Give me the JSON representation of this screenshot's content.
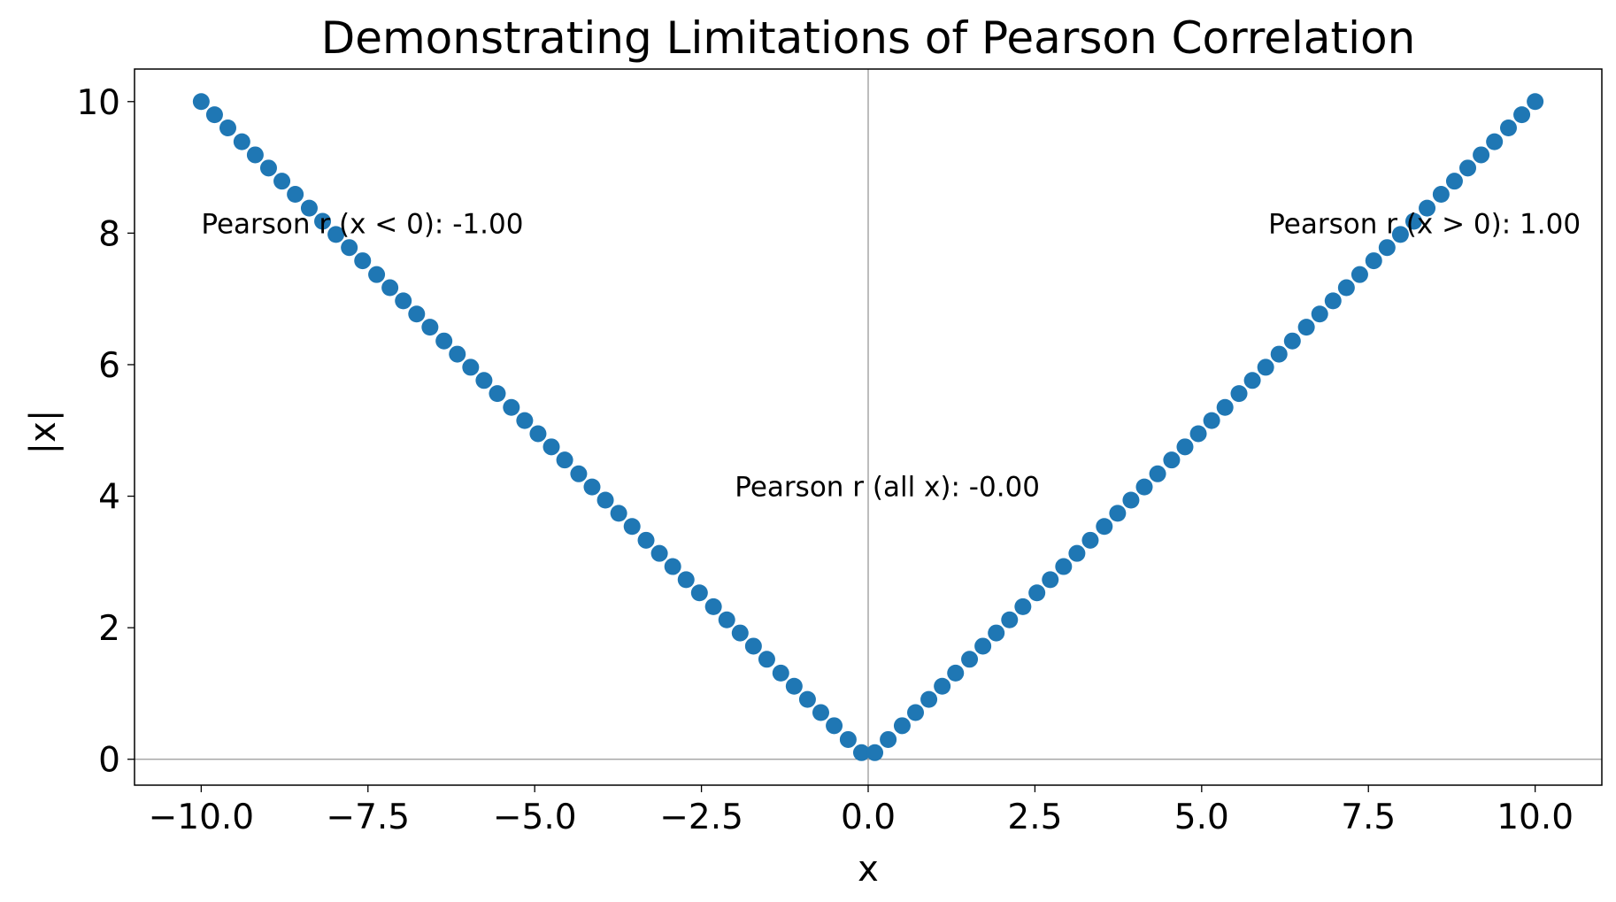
{
  "chart_data": {
    "type": "scatter",
    "title": "Demonstrating Limitations of Pearson Correlation",
    "x_label": "x",
    "y_label": "|x|",
    "color": "#1f77b4",
    "x": [
      -10.0,
      -9.8,
      -9.6,
      -9.39,
      -9.19,
      -8.99,
      -8.79,
      -8.59,
      -8.38,
      -8.18,
      -7.98,
      -7.78,
      -7.58,
      -7.37,
      -7.17,
      -6.97,
      -6.77,
      -6.57,
      -6.36,
      -6.16,
      -5.96,
      -5.76,
      -5.56,
      -5.35,
      -5.15,
      -4.95,
      -4.75,
      -4.55,
      -4.34,
      -4.14,
      -3.94,
      -3.74,
      -3.54,
      -3.33,
      -3.13,
      -2.93,
      -2.73,
      -2.53,
      -2.32,
      -2.12,
      -1.92,
      -1.72,
      -1.52,
      -1.31,
      -1.11,
      -0.91,
      -0.71,
      -0.51,
      -0.3,
      -0.1,
      0.1,
      0.3,
      0.51,
      0.71,
      0.91,
      1.11,
      1.31,
      1.52,
      1.72,
      1.92,
      2.12,
      2.32,
      2.53,
      2.73,
      2.93,
      3.13,
      3.33,
      3.54,
      3.74,
      3.94,
      4.14,
      4.34,
      4.55,
      4.75,
      4.95,
      5.15,
      5.35,
      5.56,
      5.76,
      5.96,
      6.16,
      6.36,
      6.57,
      6.77,
      6.97,
      7.17,
      7.37,
      7.58,
      7.78,
      7.98,
      8.18,
      8.38,
      8.59,
      8.79,
      8.99,
      9.19,
      9.39,
      9.6,
      9.8,
      10.0
    ],
    "values": [
      10.0,
      9.8,
      9.6,
      9.39,
      9.19,
      8.99,
      8.79,
      8.59,
      8.38,
      8.18,
      7.98,
      7.78,
      7.58,
      7.37,
      7.17,
      6.97,
      6.77,
      6.57,
      6.36,
      6.16,
      5.96,
      5.76,
      5.56,
      5.35,
      5.15,
      4.95,
      4.75,
      4.55,
      4.34,
      4.14,
      3.94,
      3.74,
      3.54,
      3.33,
      3.13,
      2.93,
      2.73,
      2.53,
      2.32,
      2.12,
      1.92,
      1.72,
      1.52,
      1.31,
      1.11,
      0.91,
      0.71,
      0.51,
      0.3,
      0.1,
      0.1,
      0.3,
      0.51,
      0.71,
      0.91,
      1.11,
      1.31,
      1.52,
      1.72,
      1.92,
      2.12,
      2.32,
      2.53,
      2.73,
      2.93,
      3.13,
      3.33,
      3.54,
      3.74,
      3.94,
      4.14,
      4.34,
      4.55,
      4.75,
      4.95,
      5.15,
      5.35,
      5.56,
      5.76,
      5.96,
      6.16,
      6.36,
      6.57,
      6.77,
      6.97,
      7.17,
      7.37,
      7.58,
      7.78,
      7.98,
      8.18,
      8.38,
      8.59,
      8.79,
      8.99,
      9.19,
      9.39,
      9.6,
      9.8,
      10.0
    ],
    "xlim": [
      -11,
      11
    ],
    "ylim": [
      -0.394,
      10.495
    ],
    "xticks": [
      {
        "value": -10,
        "label": "−10.0"
      },
      {
        "value": -7.5,
        "label": "−7.5"
      },
      {
        "value": -5,
        "label": "−5.0"
      },
      {
        "value": -2.5,
        "label": "−2.5"
      },
      {
        "value": 0,
        "label": "0.0"
      },
      2.5,
      {
        "value": 5,
        "label": "5.0"
      },
      7.5,
      {
        "value": 10,
        "label": "10.0"
      }
    ],
    "yticks": [
      0,
      2,
      4,
      6,
      8,
      10
    ],
    "annotations": [
      "Pearson r (x < 0): -1.00",
      "Pearson r (all x): -0.00",
      "Pearson r (x > 0): 1.00"
    ]
  }
}
